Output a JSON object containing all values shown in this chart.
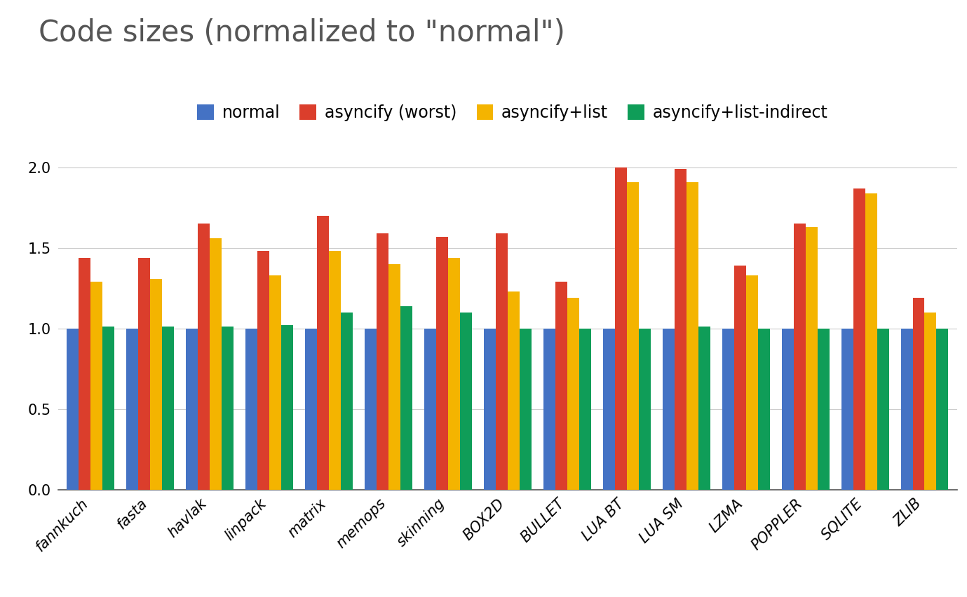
{
  "title": "Code sizes (normalized to \"normal\")",
  "categories": [
    "fannkuch",
    "fasta",
    "havlak",
    "linpack",
    "matrix",
    "memops",
    "skinning",
    "BOX2D",
    "BULLET",
    "LUA BT",
    "LUA SM",
    "LZMA",
    "POPPLER",
    "SQLITE",
    "ZLIB"
  ],
  "series": {
    "normal": [
      1.0,
      1.0,
      1.0,
      1.0,
      1.0,
      1.0,
      1.0,
      1.0,
      1.0,
      1.0,
      1.0,
      1.0,
      1.0,
      1.0,
      1.0
    ],
    "asyncify (worst)": [
      1.44,
      1.44,
      1.65,
      1.48,
      1.7,
      1.59,
      1.57,
      1.59,
      1.29,
      2.0,
      1.99,
      1.39,
      1.65,
      1.87,
      1.19
    ],
    "asyncify+list": [
      1.29,
      1.31,
      1.56,
      1.33,
      1.48,
      1.4,
      1.44,
      1.23,
      1.19,
      1.91,
      1.91,
      1.33,
      1.63,
      1.84,
      1.1
    ],
    "asyncify+list-indirect": [
      1.01,
      1.01,
      1.01,
      1.02,
      1.1,
      1.14,
      1.1,
      1.0,
      1.0,
      1.0,
      1.01,
      1.0,
      1.0,
      1.0,
      1.0
    ]
  },
  "colors": {
    "normal": "#4472C4",
    "asyncify (worst)": "#DB3E2C",
    "asyncify+list": "#F4B400",
    "asyncify+list-indirect": "#0F9D58"
  },
  "legend_labels": [
    "normal",
    "asyncify (worst)",
    "asyncify+list",
    "asyncify+list-indirect"
  ],
  "ylim": [
    0,
    2.15
  ],
  "yticks": [
    0,
    0.5,
    1.0,
    1.5,
    2.0
  ],
  "background_color": "#ffffff",
  "title_fontsize": 30,
  "tick_fontsize": 15,
  "legend_fontsize": 17,
  "bar_width": 0.2
}
